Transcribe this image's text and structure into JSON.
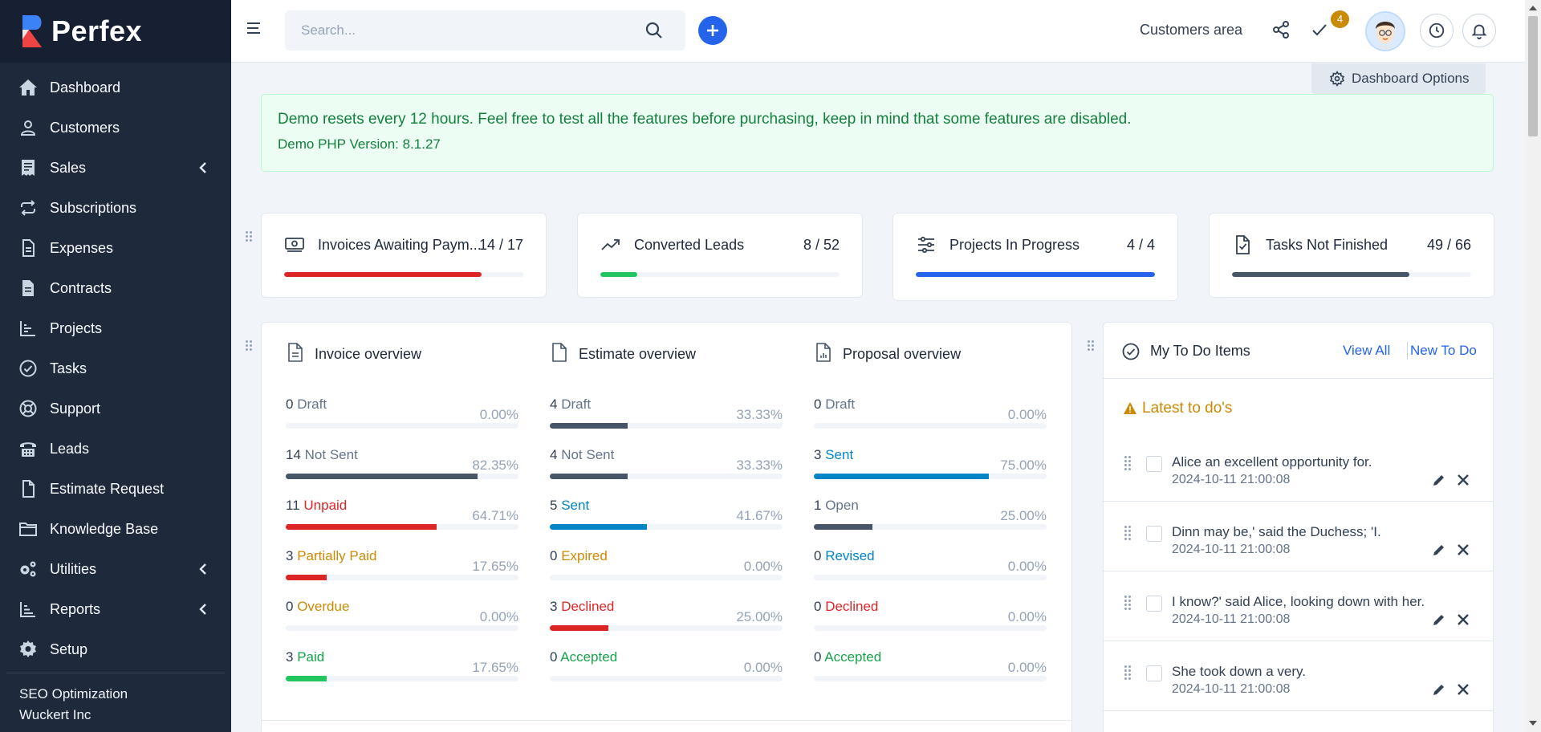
{
  "app": {
    "name": "Perfex"
  },
  "sidebar": {
    "items": [
      {
        "label": "Dashboard",
        "icon": "home-icon",
        "expandable": false
      },
      {
        "label": "Customers",
        "icon": "user-icon",
        "expandable": false
      },
      {
        "label": "Sales",
        "icon": "receipt-icon",
        "expandable": true
      },
      {
        "label": "Subscriptions",
        "icon": "repeat-icon",
        "expandable": false
      },
      {
        "label": "Expenses",
        "icon": "document-icon",
        "expandable": false
      },
      {
        "label": "Contracts",
        "icon": "contract-icon",
        "expandable": false
      },
      {
        "label": "Projects",
        "icon": "chart-bar-icon",
        "expandable": false
      },
      {
        "label": "Tasks",
        "icon": "check-circle-icon",
        "expandable": false
      },
      {
        "label": "Support",
        "icon": "lifebuoy-icon",
        "expandable": false
      },
      {
        "label": "Leads",
        "icon": "tty-icon",
        "expandable": false
      },
      {
        "label": "Estimate Request",
        "icon": "file-icon",
        "expandable": false
      },
      {
        "label": "Knowledge Base",
        "icon": "folder-icon",
        "expandable": false
      },
      {
        "label": "Utilities",
        "icon": "cogs-icon",
        "expandable": true
      },
      {
        "label": "Reports",
        "icon": "chart-bars-icon",
        "expandable": true
      },
      {
        "label": "Setup",
        "icon": "gear-icon",
        "expandable": false
      }
    ],
    "footer": {
      "line1": "SEO Optimization",
      "line2": "Wuckert Inc"
    }
  },
  "topbar": {
    "search_placeholder": "Search...",
    "customers_area": "Customers area",
    "todo_badge": "4"
  },
  "dashboard_options": "Dashboard Options",
  "alert": {
    "line1": "Demo resets every 12 hours. Feel free to test all the features before purchasing, keep in mind that some features are disabled.",
    "line2": "Demo PHP Version: 8.1.27"
  },
  "stats": [
    {
      "title": "Invoices Awaiting Paym...",
      "value": "14 / 17",
      "progress": 0.824,
      "color": "#dc2626",
      "icon": "money-icon"
    },
    {
      "title": "Converted Leads",
      "value": "8 / 52",
      "progress": 0.154,
      "color": "#22c55e",
      "icon": "trend-up-icon"
    },
    {
      "title": "Projects In Progress",
      "value": "4 / 4",
      "progress": 1.0,
      "color": "#2563eb",
      "icon": "sliders-icon"
    },
    {
      "title": "Tasks Not Finished",
      "value": "49 / 66",
      "progress": 0.742,
      "color": "#475569",
      "icon": "file-check-icon"
    }
  ],
  "overview": {
    "invoice": {
      "title": "Invoice overview",
      "rows": [
        {
          "count": "0",
          "label": "Draft",
          "pct": "0.00%",
          "value": 0.0,
          "color": "#475569",
          "text": "#64748b"
        },
        {
          "count": "14",
          "label": "Not Sent",
          "pct": "82.35%",
          "value": 82.35,
          "color": "#475569",
          "text": "#64748b"
        },
        {
          "count": "11",
          "label": "Unpaid",
          "pct": "64.71%",
          "value": 64.71,
          "color": "#dc2626",
          "text": "#dc2626"
        },
        {
          "count": "3",
          "label": "Partially Paid",
          "pct": "17.65%",
          "value": 17.65,
          "color": "#dc2626",
          "text": "#ca8a04"
        },
        {
          "count": "0",
          "label": "Overdue",
          "pct": "0.00%",
          "value": 0.0,
          "color": "#ca8a04",
          "text": "#ca8a04"
        },
        {
          "count": "3",
          "label": "Paid",
          "pct": "17.65%",
          "value": 17.65,
          "color": "#22c55e",
          "text": "#16a34a"
        }
      ]
    },
    "estimate": {
      "title": "Estimate overview",
      "rows": [
        {
          "count": "4",
          "label": "Draft",
          "pct": "33.33%",
          "value": 33.33,
          "color": "#475569",
          "text": "#64748b"
        },
        {
          "count": "4",
          "label": "Not Sent",
          "pct": "33.33%",
          "value": 33.33,
          "color": "#475569",
          "text": "#64748b"
        },
        {
          "count": "5",
          "label": "Sent",
          "pct": "41.67%",
          "value": 41.67,
          "color": "#0284c7",
          "text": "#0284c7"
        },
        {
          "count": "0",
          "label": "Expired",
          "pct": "0.00%",
          "value": 0.0,
          "color": "#ca8a04",
          "text": "#ca8a04"
        },
        {
          "count": "3",
          "label": "Declined",
          "pct": "25.00%",
          "value": 25.0,
          "color": "#dc2626",
          "text": "#dc2626"
        },
        {
          "count": "0",
          "label": "Accepted",
          "pct": "0.00%",
          "value": 0.0,
          "color": "#22c55e",
          "text": "#16a34a"
        }
      ]
    },
    "proposal": {
      "title": "Proposal overview",
      "rows": [
        {
          "count": "0",
          "label": "Draft",
          "pct": "0.00%",
          "value": 0.0,
          "color": "#475569",
          "text": "#64748b"
        },
        {
          "count": "3",
          "label": "Sent",
          "pct": "75.00%",
          "value": 75.0,
          "color": "#0284c7",
          "text": "#0284c7"
        },
        {
          "count": "1",
          "label": "Open",
          "pct": "25.00%",
          "value": 25.0,
          "color": "#475569",
          "text": "#64748b"
        },
        {
          "count": "0",
          "label": "Revised",
          "pct": "0.00%",
          "value": 0.0,
          "color": "#0284c7",
          "text": "#0284c7"
        },
        {
          "count": "0",
          "label": "Declined",
          "pct": "0.00%",
          "value": 0.0,
          "color": "#dc2626",
          "text": "#dc2626"
        },
        {
          "count": "0",
          "label": "Accepted",
          "pct": "0.00%",
          "value": 0.0,
          "color": "#22c55e",
          "text": "#16a34a"
        }
      ]
    }
  },
  "todo": {
    "title": "My To Do Items",
    "view_all": "View All",
    "new_todo": "New To Do",
    "latest_label": "Latest to do's",
    "items": [
      {
        "text": "Alice an excellent opportunity for.",
        "date": "2024-10-11 21:00:08"
      },
      {
        "text": "Dinn may be,' said the Duchess; 'I.",
        "date": "2024-10-11 21:00:08"
      },
      {
        "text": "I know?' said Alice, looking down with her.",
        "date": "2024-10-11 21:00:08"
      },
      {
        "text": "She took down a very.",
        "date": "2024-10-11 21:00:08"
      }
    ]
  }
}
